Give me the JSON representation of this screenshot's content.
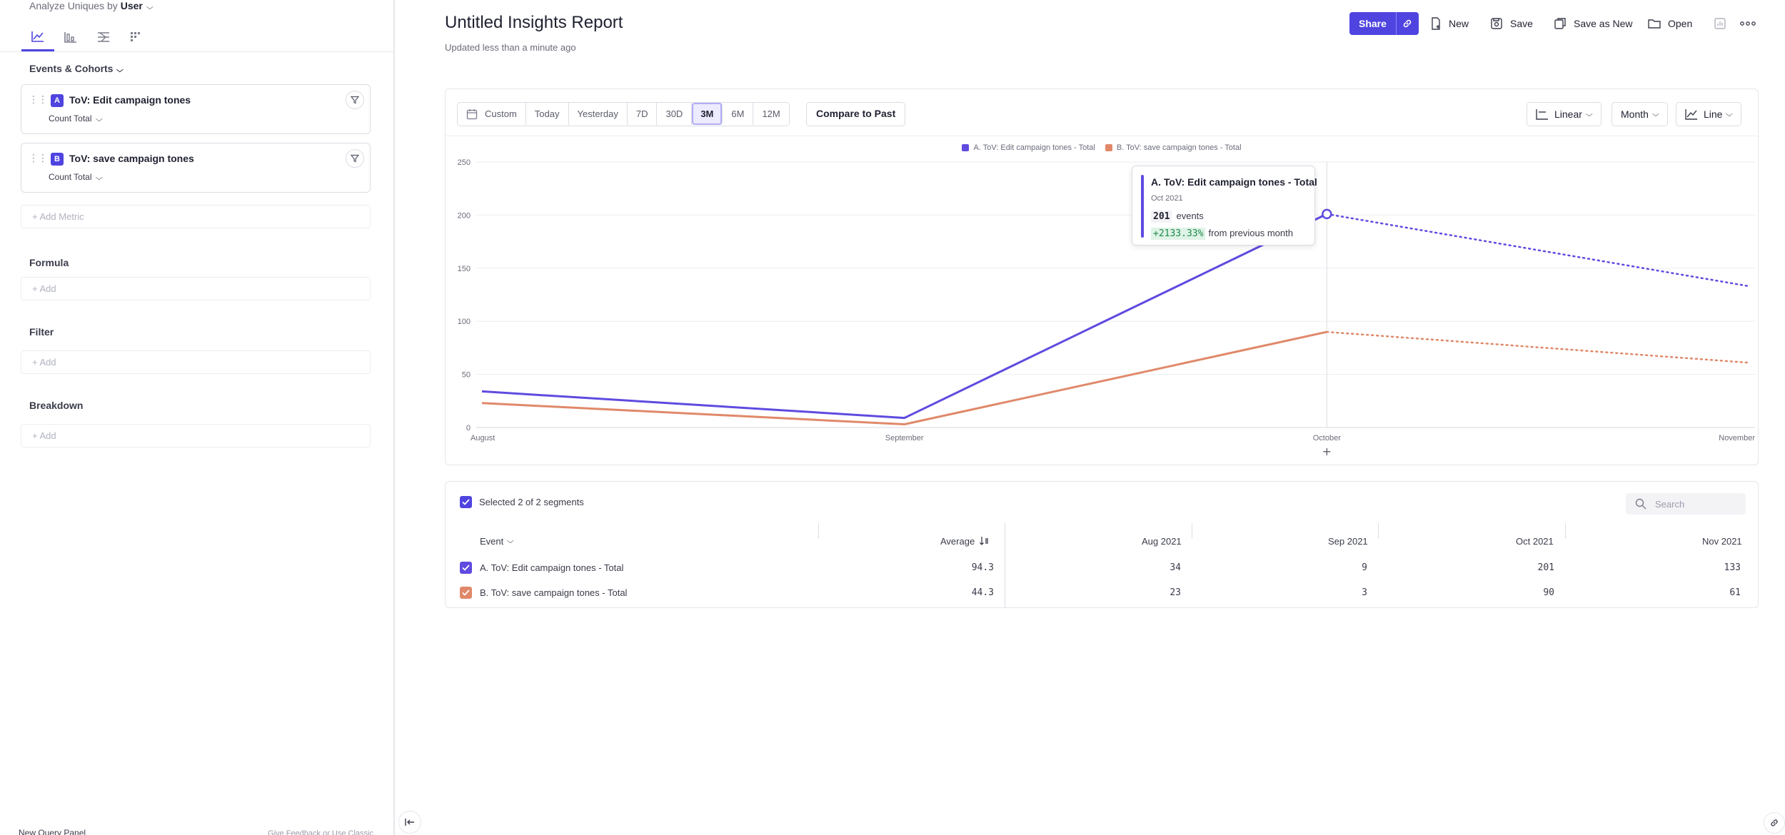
{
  "sidebar": {
    "analyze_prefix": "Analyze Uniques by",
    "analyze_value": "User",
    "events_header": "Events & Cohorts",
    "metrics": [
      {
        "badge": "A",
        "name": "ToV: Edit campaign tones",
        "aggregation": "Count Total",
        "color": "#4f44e0"
      },
      {
        "badge": "B",
        "name": "ToV: save campaign tones",
        "aggregation": "Count Total",
        "color": "#4f44e0"
      }
    ],
    "add_metric": "+ Add Metric",
    "formula_header": "Formula",
    "filter_header": "Filter",
    "breakdown_header": "Breakdown",
    "add_label": "+ Add",
    "bottom_left": "New Query Panel",
    "bottom_right": "Give Feedback or Use Classic"
  },
  "header": {
    "title": "Untitled Insights Report",
    "subtitle": "Updated less than a minute ago",
    "share": "Share",
    "new": "New",
    "save": "Save",
    "save_as_new": "Save as New",
    "open": "Open"
  },
  "controls": {
    "date_ranges": [
      "Custom",
      "Today",
      "Yesterday",
      "7D",
      "30D",
      "3M",
      "6M",
      "12M"
    ],
    "active_range": "3M",
    "compare": "Compare to Past",
    "scale": "Linear",
    "interval": "Month",
    "chart_type": "Line"
  },
  "chart_data": {
    "type": "line",
    "categories": [
      "August",
      "September",
      "October",
      "November"
    ],
    "ylim": [
      0,
      250
    ],
    "yticks": [
      0,
      50,
      100,
      150,
      200,
      250
    ],
    "grid": true,
    "legend_position": "top-center",
    "series": [
      {
        "name": "A. ToV: Edit campaign tones - Total",
        "values": [
          34,
          9,
          201,
          133
        ],
        "color": "#5f4be0"
      },
      {
        "name": "B. ToV: save campaign tones - Total",
        "values": [
          23,
          3,
          90,
          61
        ],
        "color": "#e0896a"
      }
    ],
    "partial_from_index": 2
  },
  "tooltip": {
    "title": "A. ToV: Edit campaign tones - Total",
    "date": "Oct 2021",
    "value": "201",
    "value_suffix": "events",
    "change": "+2133.33%",
    "change_suffix": "from previous month"
  },
  "table": {
    "selected_text": "Selected 2 of 2 segments",
    "search_placeholder": "Search",
    "col_event": "Event",
    "col_average": "Average",
    "months": [
      "Aug 2021",
      "Sep 2021",
      "Oct 2021",
      "Nov 2021"
    ],
    "rows": [
      {
        "name": "A. ToV: Edit campaign tones - Total",
        "average": "94.3",
        "values": [
          "34",
          "9",
          "201",
          "133"
        ],
        "color": "#5f4be0"
      },
      {
        "name": "B. ToV: save campaign tones - Total",
        "average": "44.3",
        "values": [
          "23",
          "3",
          "90",
          "61"
        ],
        "color": "#e0896a"
      }
    ]
  }
}
